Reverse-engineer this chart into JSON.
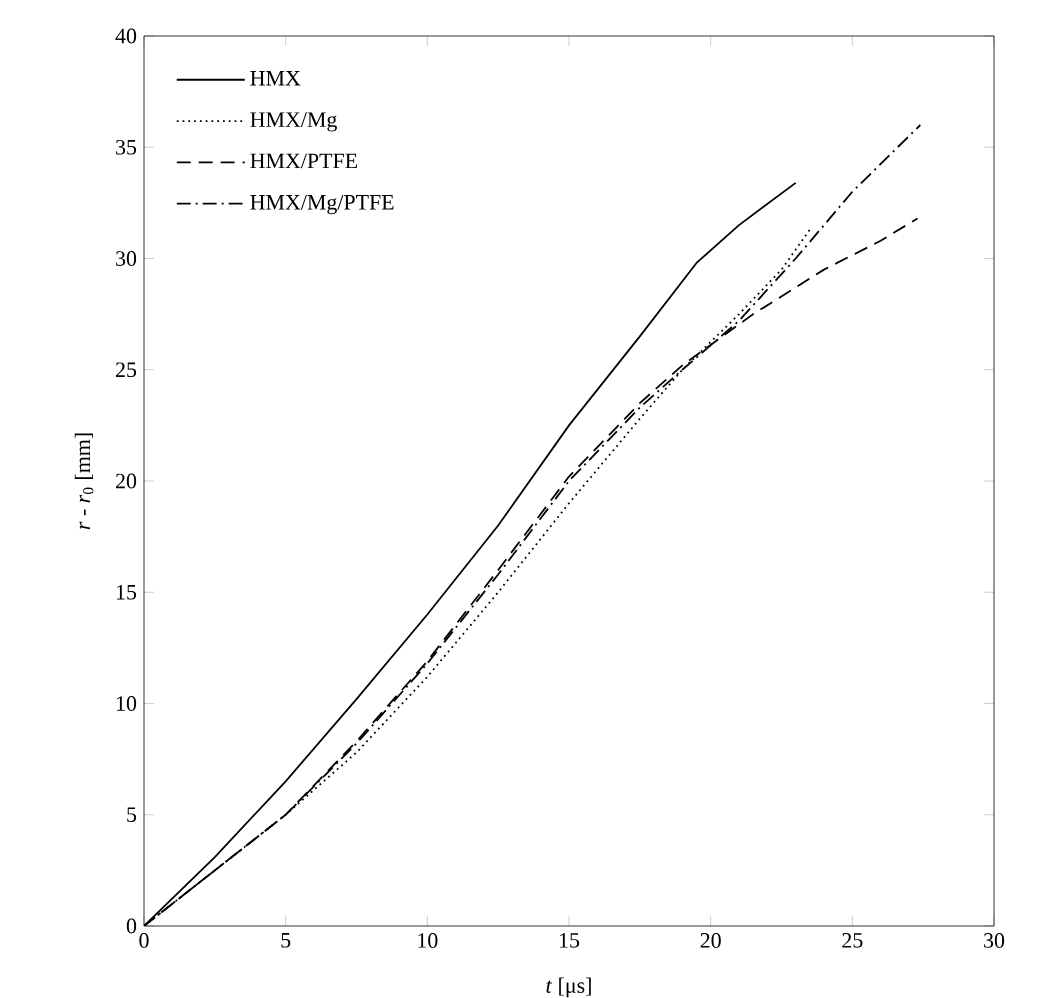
{
  "chart_data": {
    "type": "line",
    "xlabel": "*t* [μs]",
    "ylabel": "*r* - *r*$_{0}$ [mm]",
    "xlim": [
      0,
      30
    ],
    "ylim": [
      0,
      40
    ],
    "xticks": [
      0,
      5,
      10,
      15,
      20,
      25,
      30
    ],
    "yticks": [
      0,
      5,
      10,
      15,
      20,
      25,
      30,
      35,
      40
    ],
    "grid": false,
    "legend": "top left",
    "series": [
      {
        "name": "HMX",
        "color": "#000000",
        "line_style": "solid",
        "x": [
          0,
          2.5,
          5,
          7.5,
          10,
          12.5,
          15,
          17.5,
          19.5,
          21,
          23
        ],
        "values": [
          0,
          3.1,
          6.5,
          10.2,
          14,
          18,
          22.5,
          26.5,
          29.8,
          31.5,
          33.4
        ]
      },
      {
        "name": "HMX/Mg",
        "color": "#000000",
        "line_style": "dotted",
        "x": [
          0,
          2.5,
          5,
          7.5,
          10,
          12.5,
          15,
          17.5,
          19,
          21,
          22.5,
          23.5
        ],
        "values": [
          0,
          2.5,
          5,
          7.8,
          11.2,
          15,
          19,
          22.8,
          25,
          27.5,
          29.5,
          31.3
        ]
      },
      {
        "name": "HMX/PTFE",
        "color": "#000000",
        "line_style": "dashed",
        "x": [
          0,
          2.5,
          5,
          7.5,
          10,
          12.5,
          15,
          17.5,
          19,
          21.5,
          24,
          26,
          27.3
        ],
        "values": [
          0,
          2.5,
          5,
          8.3,
          11.9,
          16,
          20.2,
          23.5,
          25.2,
          27.5,
          29.5,
          30.8,
          31.8
        ]
      },
      {
        "name": "HMX/Mg/PTFE",
        "color": "#000000",
        "line_style": "dashdot",
        "x": [
          0,
          2.5,
          5,
          7.5,
          10,
          12.5,
          15,
          17.5,
          19,
          21,
          23,
          25,
          27.4
        ],
        "values": [
          0,
          2.5,
          5,
          8.2,
          11.8,
          15.8,
          20,
          23.3,
          25,
          27.2,
          30,
          33,
          36
        ]
      }
    ]
  }
}
